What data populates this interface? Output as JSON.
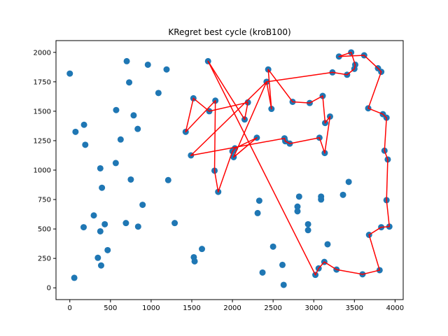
{
  "chart_data": {
    "type": "scatter",
    "title": "KRegret best cycle (kroB100)",
    "xlabel": "",
    "ylabel": "",
    "xlim": [
      -170,
      4100
    ],
    "ylim": [
      -100,
      2100
    ],
    "xticks": [
      0,
      500,
      1000,
      1500,
      2000,
      2500,
      3000,
      3500,
      4000
    ],
    "yticks": [
      0,
      250,
      500,
      750,
      1000,
      1250,
      1500,
      1750,
      2000
    ],
    "grid": false,
    "point_color": "#1f77b4",
    "line_color": "#ff0000",
    "points": [
      [
        0,
        1820
      ],
      [
        70,
        1325
      ],
      [
        175,
        1385
      ],
      [
        190,
        1215
      ],
      [
        55,
        85
      ],
      [
        170,
        515
      ],
      [
        295,
        615
      ],
      [
        375,
        1015
      ],
      [
        395,
        850
      ],
      [
        375,
        480
      ],
      [
        345,
        255
      ],
      [
        385,
        190
      ],
      [
        430,
        540
      ],
      [
        465,
        320
      ],
      [
        570,
        1510
      ],
      [
        565,
        1060
      ],
      [
        625,
        1260
      ],
      [
        700,
        1925
      ],
      [
        730,
        1745
      ],
      [
        690,
        550
      ],
      [
        750,
        920
      ],
      [
        785,
        1465
      ],
      [
        835,
        1350
      ],
      [
        840,
        520
      ],
      [
        895,
        705
      ],
      [
        960,
        1895
      ],
      [
        1090,
        1655
      ],
      [
        1190,
        1855
      ],
      [
        1210,
        915
      ],
      [
        1290,
        550
      ],
      [
        1425,
        1325
      ],
      [
        1520,
        1610
      ],
      [
        1490,
        1125
      ],
      [
        1525,
        260
      ],
      [
        1535,
        225
      ],
      [
        1625,
        330
      ],
      [
        1700,
        1925
      ],
      [
        1715,
        1500
      ],
      [
        1790,
        1590
      ],
      [
        1780,
        995
      ],
      [
        1825,
        815
      ],
      [
        2000,
        1160
      ],
      [
        2015,
        1110
      ],
      [
        2030,
        1185
      ],
      [
        2150,
        1430
      ],
      [
        2190,
        1575
      ],
      [
        2300,
        1275
      ],
      [
        2310,
        635
      ],
      [
        2330,
        740
      ],
      [
        2370,
        130
      ],
      [
        2420,
        1750
      ],
      [
        2440,
        1855
      ],
      [
        2480,
        1520
      ],
      [
        2500,
        350
      ],
      [
        2615,
        195
      ],
      [
        2640,
        1270
      ],
      [
        2650,
        1245
      ],
      [
        2630,
        25
      ],
      [
        2705,
        1225
      ],
      [
        2740,
        1580
      ],
      [
        2800,
        690
      ],
      [
        2800,
        650
      ],
      [
        2820,
        775
      ],
      [
        2930,
        540
      ],
      [
        2930,
        490
      ],
      [
        2950,
        1570
      ],
      [
        3020,
        110
      ],
      [
        3060,
        165
      ],
      [
        3070,
        1275
      ],
      [
        3090,
        775
      ],
      [
        3090,
        750
      ],
      [
        3110,
        1630
      ],
      [
        3130,
        220
      ],
      [
        3135,
        1145
      ],
      [
        3140,
        1400
      ],
      [
        3170,
        370
      ],
      [
        3200,
        1455
      ],
      [
        3230,
        1830
      ],
      [
        3280,
        155
      ],
      [
        3310,
        1965
      ],
      [
        3360,
        790
      ],
      [
        3410,
        1810
      ],
      [
        3430,
        900
      ],
      [
        3460,
        2000
      ],
      [
        3500,
        1860
      ],
      [
        3510,
        1895
      ],
      [
        3600,
        115
      ],
      [
        3620,
        1975
      ],
      [
        3670,
        1525
      ],
      [
        3680,
        450
      ],
      [
        3790,
        1865
      ],
      [
        3810,
        150
      ],
      [
        3830,
        515
      ],
      [
        3830,
        1835
      ],
      [
        3850,
        1475
      ],
      [
        3870,
        1165
      ],
      [
        3895,
        1445
      ],
      [
        3895,
        745
      ],
      [
        3910,
        1090
      ],
      [
        3930,
        520
      ]
    ],
    "cycle": [
      [
        1700,
        1925
      ],
      [
        2150,
        1430
      ],
      [
        2190,
        1575
      ],
      [
        1715,
        1500
      ],
      [
        1520,
        1610
      ],
      [
        1425,
        1325
      ],
      [
        1790,
        1590
      ],
      [
        1780,
        995
      ],
      [
        1825,
        815
      ],
      [
        2000,
        1160
      ],
      [
        2030,
        1185
      ],
      [
        2300,
        1275
      ],
      [
        2015,
        1110
      ],
      [
        2420,
        1750
      ],
      [
        2480,
        1520
      ],
      [
        2440,
        1855
      ],
      [
        2740,
        1580
      ],
      [
        2950,
        1570
      ],
      [
        3110,
        1630
      ],
      [
        3140,
        1400
      ],
      [
        3200,
        1455
      ],
      [
        3135,
        1145
      ],
      [
        3070,
        1275
      ],
      [
        2705,
        1225
      ],
      [
        2650,
        1245
      ],
      [
        2640,
        1270
      ],
      [
        1490,
        1125
      ],
      [
        2420,
        1750
      ],
      [
        3230,
        1830
      ],
      [
        3410,
        1810
      ],
      [
        3500,
        1860
      ],
      [
        3510,
        1895
      ],
      [
        3460,
        2000
      ],
      [
        3310,
        1965
      ],
      [
        3620,
        1975
      ],
      [
        3790,
        1865
      ],
      [
        3830,
        1835
      ],
      [
        3670,
        1525
      ],
      [
        3850,
        1475
      ],
      [
        3895,
        1445
      ],
      [
        3870,
        1165
      ],
      [
        3910,
        1090
      ],
      [
        3895,
        745
      ],
      [
        3930,
        520
      ],
      [
        3830,
        515
      ],
      [
        3680,
        450
      ],
      [
        3810,
        150
      ],
      [
        3600,
        115
      ],
      [
        3280,
        155
      ],
      [
        3130,
        220
      ],
      [
        3060,
        165
      ],
      [
        3020,
        110
      ],
      [
        1700,
        1925
      ]
    ]
  }
}
